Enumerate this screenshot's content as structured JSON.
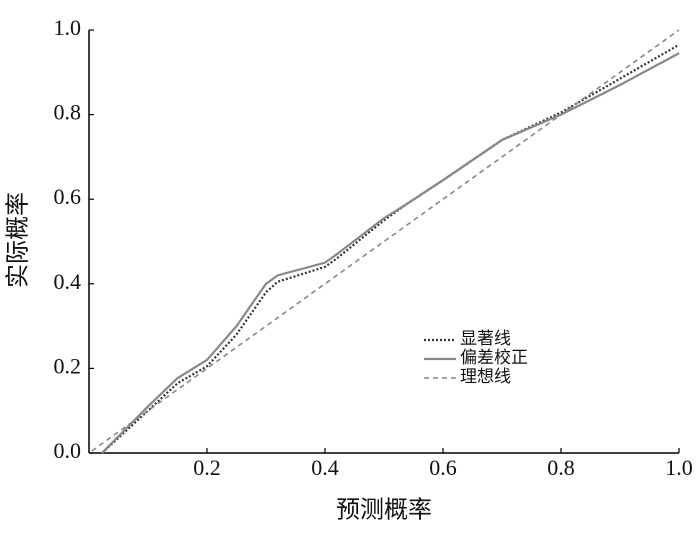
{
  "chart_data": {
    "type": "line",
    "xlabel": "预测概率",
    "ylabel": "实际概率",
    "xlim": [
      0,
      1
    ],
    "ylim": [
      0,
      1
    ],
    "xticks": [
      {
        "value": 0.2,
        "label": "0.2"
      },
      {
        "value": 0.4,
        "label": "0.4"
      },
      {
        "value": 0.6,
        "label": "0.6"
      },
      {
        "value": 0.8,
        "label": "0.8"
      },
      {
        "value": 1,
        "label": "1.0"
      }
    ],
    "yticks": [
      {
        "value": 0,
        "label": "0.0"
      },
      {
        "value": 0.2,
        "label": "0.2"
      },
      {
        "value": 0.4,
        "label": "0.4"
      },
      {
        "value": 0.6,
        "label": "0.6"
      },
      {
        "value": 0.8,
        "label": "0.8"
      },
      {
        "value": 1,
        "label": "1.0"
      }
    ],
    "series": [
      {
        "name": "显著线",
        "color": "#333333",
        "dash": "2,2",
        "width": 2.2,
        "x": [
          0.022,
          0.1,
          0.15,
          0.2,
          0.25,
          0.3,
          0.32,
          0.4,
          0.42,
          0.5,
          0.54,
          0.6,
          0.7,
          0.8,
          0.9,
          1.0
        ],
        "values": [
          0,
          0.1,
          0.165,
          0.205,
          0.28,
          0.38,
          0.405,
          0.44,
          0.46,
          0.55,
          0.59,
          0.645,
          0.74,
          0.805,
          0.885,
          0.965
        ]
      },
      {
        "name": "偏差校正",
        "color": "#888888",
        "dash": "none",
        "width": 2.2,
        "x": [
          0.022,
          0.1,
          0.15,
          0.2,
          0.25,
          0.3,
          0.32,
          0.4,
          0.42,
          0.5,
          0.54,
          0.6,
          0.7,
          0.8,
          0.9,
          1.0
        ],
        "values": [
          0,
          0.11,
          0.177,
          0.22,
          0.3,
          0.4,
          0.42,
          0.45,
          0.47,
          0.555,
          0.59,
          0.645,
          0.74,
          0.8,
          0.87,
          0.945
        ]
      },
      {
        "name": "理想线",
        "color": "#888888",
        "dash": "5,4",
        "width": 1.6,
        "x": [
          0.005,
          1.0
        ],
        "values": [
          0.005,
          1.0
        ]
      }
    ]
  }
}
